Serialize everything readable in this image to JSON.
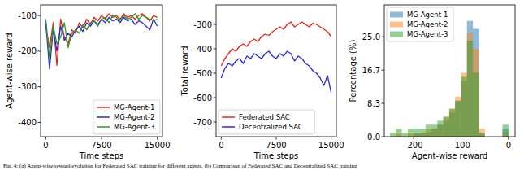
{
  "chart_data": [
    {
      "type": "line",
      "x_label": "Time steps",
      "y_label": "Agent-wise reward",
      "x": [
        0,
        500,
        1000,
        1500,
        2000,
        2500,
        3000,
        3500,
        4000,
        4500,
        5000,
        5500,
        6000,
        6500,
        7000,
        7500,
        8000,
        8500,
        9000,
        9500,
        10000,
        10500,
        11000,
        11500,
        12000,
        12500,
        13000,
        13500,
        14000,
        14500,
        15000
      ],
      "series": [
        {
          "name": "MG-Agent-1",
          "color": "#e8231c",
          "values": [
            -130,
            -190,
            -120,
            -240,
            -110,
            -160,
            -180,
            -140,
            -150,
            -120,
            -135,
            -110,
            -125,
            -105,
            -115,
            -100,
            -110,
            -95,
            -105,
            -100,
            -110,
            -95,
            -105,
            -100,
            -110,
            -100,
            -95,
            -105,
            -115,
            -100,
            -105
          ]
        },
        {
          "name": "MG-Agent-2",
          "color": "#2a2ad6",
          "values": [
            -120,
            -250,
            -140,
            -200,
            -130,
            -170,
            -150,
            -160,
            -140,
            -130,
            -145,
            -120,
            -130,
            -115,
            -125,
            -110,
            -120,
            -105,
            -115,
            -110,
            -120,
            -105,
            -115,
            -110,
            -125,
            -115,
            -120,
            -130,
            -140,
            -110,
            -130
          ]
        },
        {
          "name": "MG-Agent-3",
          "color": "#2a9a2a",
          "values": [
            -110,
            -220,
            -130,
            -180,
            -160,
            -120,
            -190,
            -150,
            -140,
            -150,
            -125,
            -140,
            -120,
            -115,
            -130,
            -110,
            -105,
            -120,
            -100,
            -105,
            -115,
            -100,
            -110,
            -105,
            -95,
            -110,
            -100,
            -105,
            -110,
            -115,
            -110
          ]
        }
      ],
      "xlim": [
        -700,
        15700
      ],
      "xticks": [
        0,
        7500,
        15000
      ],
      "ylim": [
        -440,
        -70
      ],
      "yticks": [
        -100,
        -200,
        -300,
        -400
      ],
      "legend": "lower right"
    },
    {
      "type": "line",
      "x_label": "Time steps",
      "y_label": "Total reward",
      "x": [
        0,
        500,
        1000,
        1500,
        2000,
        2500,
        3000,
        3500,
        4000,
        4500,
        5000,
        5500,
        6000,
        6500,
        7000,
        7500,
        8000,
        8500,
        9000,
        9500,
        10000,
        10500,
        11000,
        11500,
        12000,
        12500,
        13000,
        13500,
        14000,
        14500,
        15000
      ],
      "series": [
        {
          "name": "Federated SAC",
          "color": "#e8231c",
          "values": [
            -470,
            -440,
            -420,
            -400,
            -410,
            -390,
            -380,
            -390,
            -370,
            -360,
            -370,
            -350,
            -340,
            -345,
            -330,
            -320,
            -310,
            -320,
            -300,
            -290,
            -310,
            -300,
            -290,
            -300,
            -310,
            -295,
            -300,
            -310,
            -320,
            -330,
            -350
          ]
        },
        {
          "name": "Decentralized SAC",
          "color": "#2a2ad6",
          "values": [
            -520,
            -480,
            -460,
            -470,
            -450,
            -440,
            -460,
            -430,
            -440,
            -420,
            -430,
            -440,
            -420,
            -410,
            -430,
            -440,
            -420,
            -430,
            -410,
            -420,
            -450,
            -430,
            -440,
            -460,
            -470,
            -490,
            -500,
            -520,
            -550,
            -510,
            -580
          ]
        }
      ],
      "xlim": [
        -700,
        15700
      ],
      "xticks": [
        0,
        7500,
        15000
      ],
      "ylim": [
        -760,
        -220
      ],
      "yticks": [
        -300,
        -400,
        -500,
        -600,
        -700
      ],
      "legend": "lower left"
    },
    {
      "type": "histogram",
      "x_label": "Agent-wise reward",
      "y_label": "Percentage (%)",
      "bins": [
        -250,
        -237.5,
        -225,
        -212.5,
        -200,
        -187.5,
        -175,
        -162.5,
        -150,
        -137.5,
        -125,
        -112.5,
        -100,
        -87.5,
        -75,
        -62.5,
        -50,
        -37.5,
        -25,
        -12.5,
        0
      ],
      "series": [
        {
          "name": "MG-Agent-1",
          "color": "#1f77b4",
          "values": [
            0,
            0,
            0,
            0,
            1,
            1,
            1,
            2,
            3,
            4,
            6,
            9,
            14,
            29,
            27,
            1,
            0,
            0,
            0,
            2
          ]
        },
        {
          "name": "MG-Agent-2",
          "color": "#ff7f0e",
          "values": [
            0,
            1,
            0,
            1,
            1,
            1,
            2,
            2,
            3,
            5,
            7,
            10,
            16,
            26,
            22,
            2,
            0,
            0,
            0,
            1
          ]
        },
        {
          "name": "MG-Agent-3",
          "color": "#2ca02c",
          "values": [
            1,
            2,
            1,
            2,
            2,
            2,
            3,
            3,
            4,
            5,
            7,
            9,
            15,
            24,
            16,
            1,
            0,
            0,
            0,
            3
          ]
        }
      ],
      "xlim": [
        -262,
        14
      ],
      "xticks": [
        -200,
        -100,
        0
      ],
      "ylim": [
        0,
        33
      ],
      "yticks": [
        {
          "value": 0,
          "label": "0.0"
        },
        {
          "value": 8.333,
          "label": "8.3"
        },
        {
          "value": 16.667,
          "label": "16.7"
        },
        {
          "value": 25,
          "label": "25.0"
        }
      ],
      "legend": "upper left"
    }
  ],
  "caption": "Fig. 4: (a) Agent-wise reward evolution for Federated SAC training for different agents. (b) Comparison of Federated SAC and Decentralized SAC training"
}
